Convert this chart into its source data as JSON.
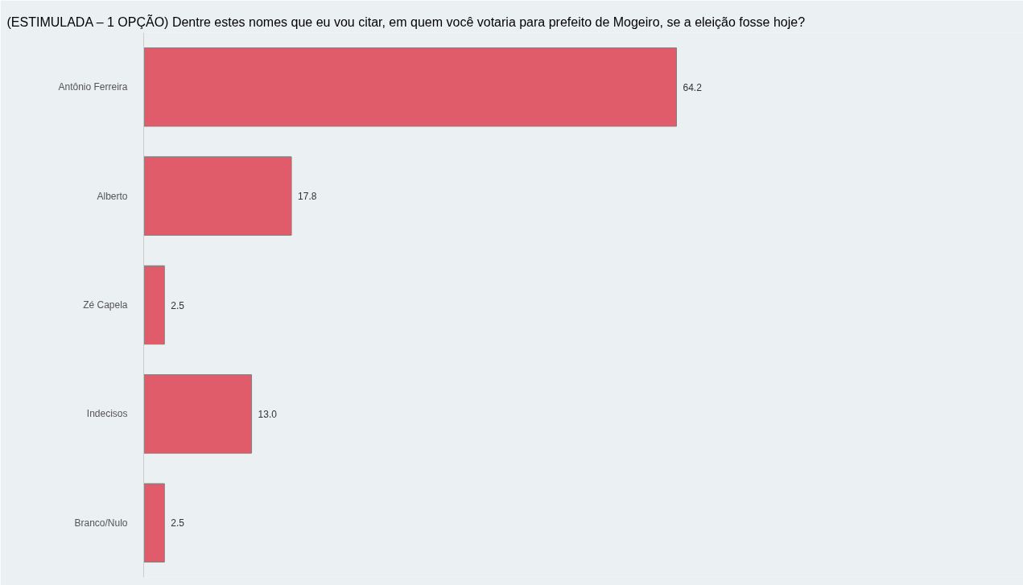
{
  "chart_data": {
    "type": "bar",
    "orientation": "horizontal",
    "title": "(ESTIMULADA – 1 OPÇÃO) Dentre estes nomes que eu vou citar, em quem você votaria para prefeito de Mogeiro, se a eleição fosse hoje?",
    "categories": [
      "Antônio Ferreira",
      "Alberto",
      "Zé Capela",
      "Indecisos",
      "Branco/Nulo"
    ],
    "values": [
      64.2,
      17.8,
      2.5,
      13.0,
      2.5
    ],
    "value_labels": [
      "64.2",
      "17.8",
      "2.5",
      "13.0",
      "2.5"
    ],
    "color": "#e05c6b",
    "xlim": [
      0,
      106
    ],
    "tick_labels": "y",
    "grid": false
  }
}
